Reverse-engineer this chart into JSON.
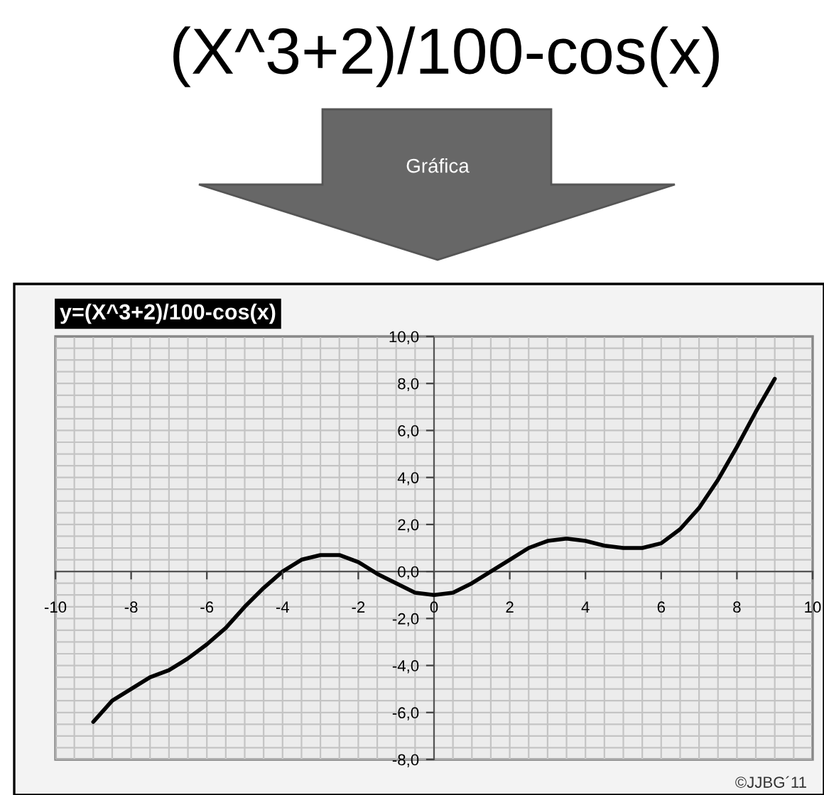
{
  "chart_data": {
    "type": "line",
    "title": "(X^3+2)/100-cos(x)",
    "subtitle": "y=(X^3+2)/100-cos(x)",
    "annotations": [
      "Gráfica",
      "©JJBG´11"
    ],
    "x": [
      -9,
      -8.5,
      -8,
      -7.5,
      -7,
      -6.5,
      -6,
      -5.5,
      -5,
      -4.5,
      -4,
      -3.5,
      -3,
      -2.5,
      -2,
      -1.5,
      -1,
      -0.5,
      0,
      0.5,
      1,
      1.5,
      2,
      2.5,
      3,
      3.5,
      4,
      4.5,
      5,
      5.5,
      6,
      6.5,
      7,
      7.5,
      8,
      8.5,
      9
    ],
    "series": [
      {
        "color": "#000000",
        "values": [
          -6.4,
          -5.5,
          -5.0,
          -4.5,
          -4.2,
          -3.7,
          -3.1,
          -2.4,
          -1.5,
          -0.7,
          0.0,
          0.5,
          0.7,
          0.7,
          0.4,
          -0.1,
          -0.5,
          -0.9,
          -1.0,
          -0.9,
          -0.5,
          0.0,
          0.5,
          1.0,
          1.3,
          1.4,
          1.3,
          1.1,
          1.0,
          1.0,
          1.2,
          1.8,
          2.7,
          3.9,
          5.3,
          6.8,
          8.2
        ]
      }
    ],
    "xlim": [
      -10,
      10
    ],
    "ylim": [
      -8,
      10
    ],
    "xticks": [
      -10,
      -8,
      -6,
      -4,
      -2,
      0,
      2,
      4,
      6,
      8,
      10
    ],
    "yticks": [
      {
        "value": -8,
        "label": "-8,0"
      },
      {
        "value": -6,
        "label": "-6,0"
      },
      {
        "value": -4,
        "label": "-4,0"
      },
      {
        "value": -2,
        "label": "-2,0"
      },
      {
        "value": 0,
        "label": "0,0"
      },
      {
        "value": 2,
        "label": "2,0"
      },
      {
        "value": 4,
        "label": "4,0"
      },
      {
        "value": 6,
        "label": "6,0"
      },
      {
        "value": 8,
        "label": "8,0"
      },
      {
        "value": 10,
        "label": "10,0"
      }
    ],
    "grid": true,
    "marker": "none",
    "line_style": "solid"
  }
}
